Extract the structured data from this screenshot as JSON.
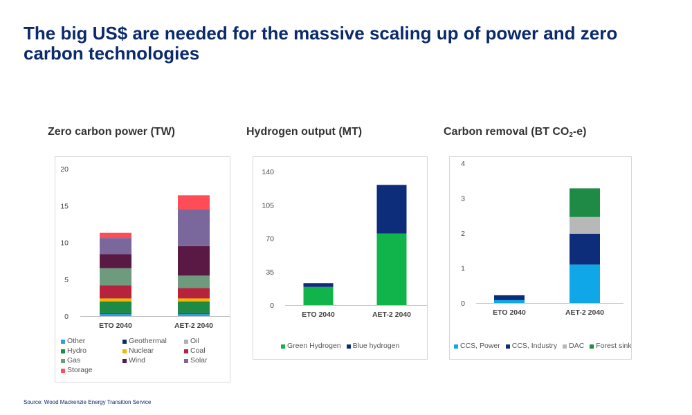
{
  "headline": "The big US$ are needed for the massive scaling up of power and zero carbon technologies",
  "source": "Source: Wood Mackenzie Energy Transition Service",
  "chart_data": [
    {
      "id": "power",
      "type": "bar",
      "stacked": true,
      "title": "Zero carbon power (TW)",
      "xlabel": "",
      "ylabel": "",
      "categories": [
        "ETO 2040",
        "AET-2 2040"
      ],
      "ylim": [
        0,
        20
      ],
      "yticks": [
        0,
        5,
        10,
        15,
        20
      ],
      "ytick_labels": [
        "0",
        "5",
        "10",
        "15",
        "20"
      ],
      "grid": false,
      "legend_position": "bottom",
      "series": [
        {
          "name": "Other",
          "color": "#2d9ee0",
          "values": [
            0.3,
            0.3
          ]
        },
        {
          "name": "Geothermal",
          "color": "#0a2a6b",
          "values": [
            0.1,
            0.1
          ]
        },
        {
          "name": "Oil",
          "color": "#b0b0b0",
          "values": [
            0.0,
            0.0
          ]
        },
        {
          "name": "Hydro",
          "color": "#1e8a45",
          "values": [
            1.6,
            1.6
          ]
        },
        {
          "name": "Nuclear",
          "color": "#f2b800",
          "values": [
            0.4,
            0.4
          ]
        },
        {
          "name": "Coal",
          "color": "#b7233f",
          "values": [
            1.8,
            1.4
          ]
        },
        {
          "name": "Gas",
          "color": "#6e9a7d",
          "values": [
            2.3,
            1.7
          ]
        },
        {
          "name": "Wind",
          "color": "#5a1844",
          "values": [
            1.9,
            4.0
          ]
        },
        {
          "name": "Solar",
          "color": "#7a679c",
          "values": [
            2.2,
            5.0
          ]
        },
        {
          "name": "Storage",
          "color": "#ff4d57",
          "values": [
            0.7,
            1.9
          ]
        }
      ]
    },
    {
      "id": "hydrogen",
      "type": "bar",
      "stacked": true,
      "title": "Hydrogen output (MT)",
      "xlabel": "",
      "ylabel": "",
      "categories": [
        "ETO 2040",
        "AET-2 2040"
      ],
      "ylim": [
        0,
        140
      ],
      "yticks": [
        0,
        35,
        70,
        105,
        140
      ],
      "ytick_labels": [
        "0",
        "35",
        "70",
        "105",
        "140"
      ],
      "grid": false,
      "legend_position": "bottom",
      "series": [
        {
          "name": "Green Hydrogen",
          "color": "#10b44a",
          "values": [
            19,
            75
          ]
        },
        {
          "name": "Blue hydrogen",
          "color": "#0d2d7a",
          "values": [
            4,
            51
          ]
        }
      ]
    },
    {
      "id": "removal",
      "type": "bar",
      "stacked": true,
      "title_text": "Carbon removal (BT CO",
      "title_sub": "2",
      "title_end": "-e)",
      "xlabel": "",
      "ylabel": "",
      "categories": [
        "ETO 2040",
        "AET-2 2040"
      ],
      "ylim": [
        0,
        4
      ],
      "yticks": [
        0,
        1,
        2,
        3,
        4
      ],
      "ytick_labels": [
        "0",
        "1",
        "2",
        "3",
        "4"
      ],
      "grid": false,
      "legend_position": "bottom",
      "series": [
        {
          "name": "CCS, Power",
          "color": "#0fa7e8",
          "values": [
            0.08,
            1.1
          ]
        },
        {
          "name": "CCS, Industry",
          "color": "#0d2d7a",
          "values": [
            0.14,
            0.88
          ]
        },
        {
          "name": "DAC",
          "color": "#b8b8b8",
          "values": [
            0,
            0.48
          ]
        },
        {
          "name": "Forest sinks",
          "color": "#1e8a45",
          "values": [
            0,
            0.82
          ]
        }
      ]
    }
  ]
}
